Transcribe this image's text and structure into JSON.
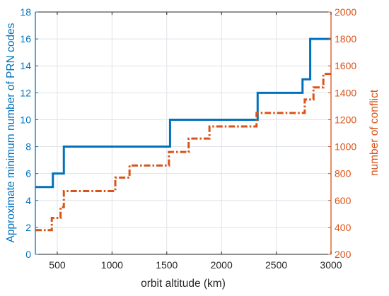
{
  "chart_data": {
    "type": "line",
    "xlabel": "orbit altitude (km)",
    "ylabel_left": "Approximate minimum number of PRN codes",
    "ylabel_right": "number of conflict",
    "xlim": [
      300,
      3000
    ],
    "ylim_left": [
      0,
      18
    ],
    "ylim_right": [
      200,
      2000
    ],
    "xticks": [
      500,
      1000,
      1500,
      2000,
      2500,
      3000
    ],
    "yticks_left": [
      0,
      2,
      4,
      6,
      8,
      10,
      12,
      14,
      16,
      18
    ],
    "yticks_right": [
      200,
      400,
      600,
      800,
      1000,
      1200,
      1400,
      1600,
      1800,
      2000
    ],
    "grid": true,
    "colors": {
      "left": "#0072BD",
      "right": "#D95319"
    },
    "series": [
      {
        "axis": "left",
        "style": "solid",
        "step": true,
        "x": [
          300,
          460,
          560,
          1530,
          2330,
          2740,
          2810,
          3000
        ],
        "y": [
          5,
          6,
          8,
          10,
          12,
          13,
          16,
          16
        ]
      },
      {
        "axis": "right",
        "style": "dashdot",
        "step": true,
        "x": [
          300,
          450,
          530,
          560,
          1030,
          1160,
          1520,
          1700,
          1890,
          2320,
          2760,
          2840,
          2930,
          3000
        ],
        "y": [
          380,
          470,
          550,
          670,
          770,
          860,
          960,
          1060,
          1150,
          1250,
          1350,
          1440,
          1540,
          1540
        ]
      }
    ]
  }
}
